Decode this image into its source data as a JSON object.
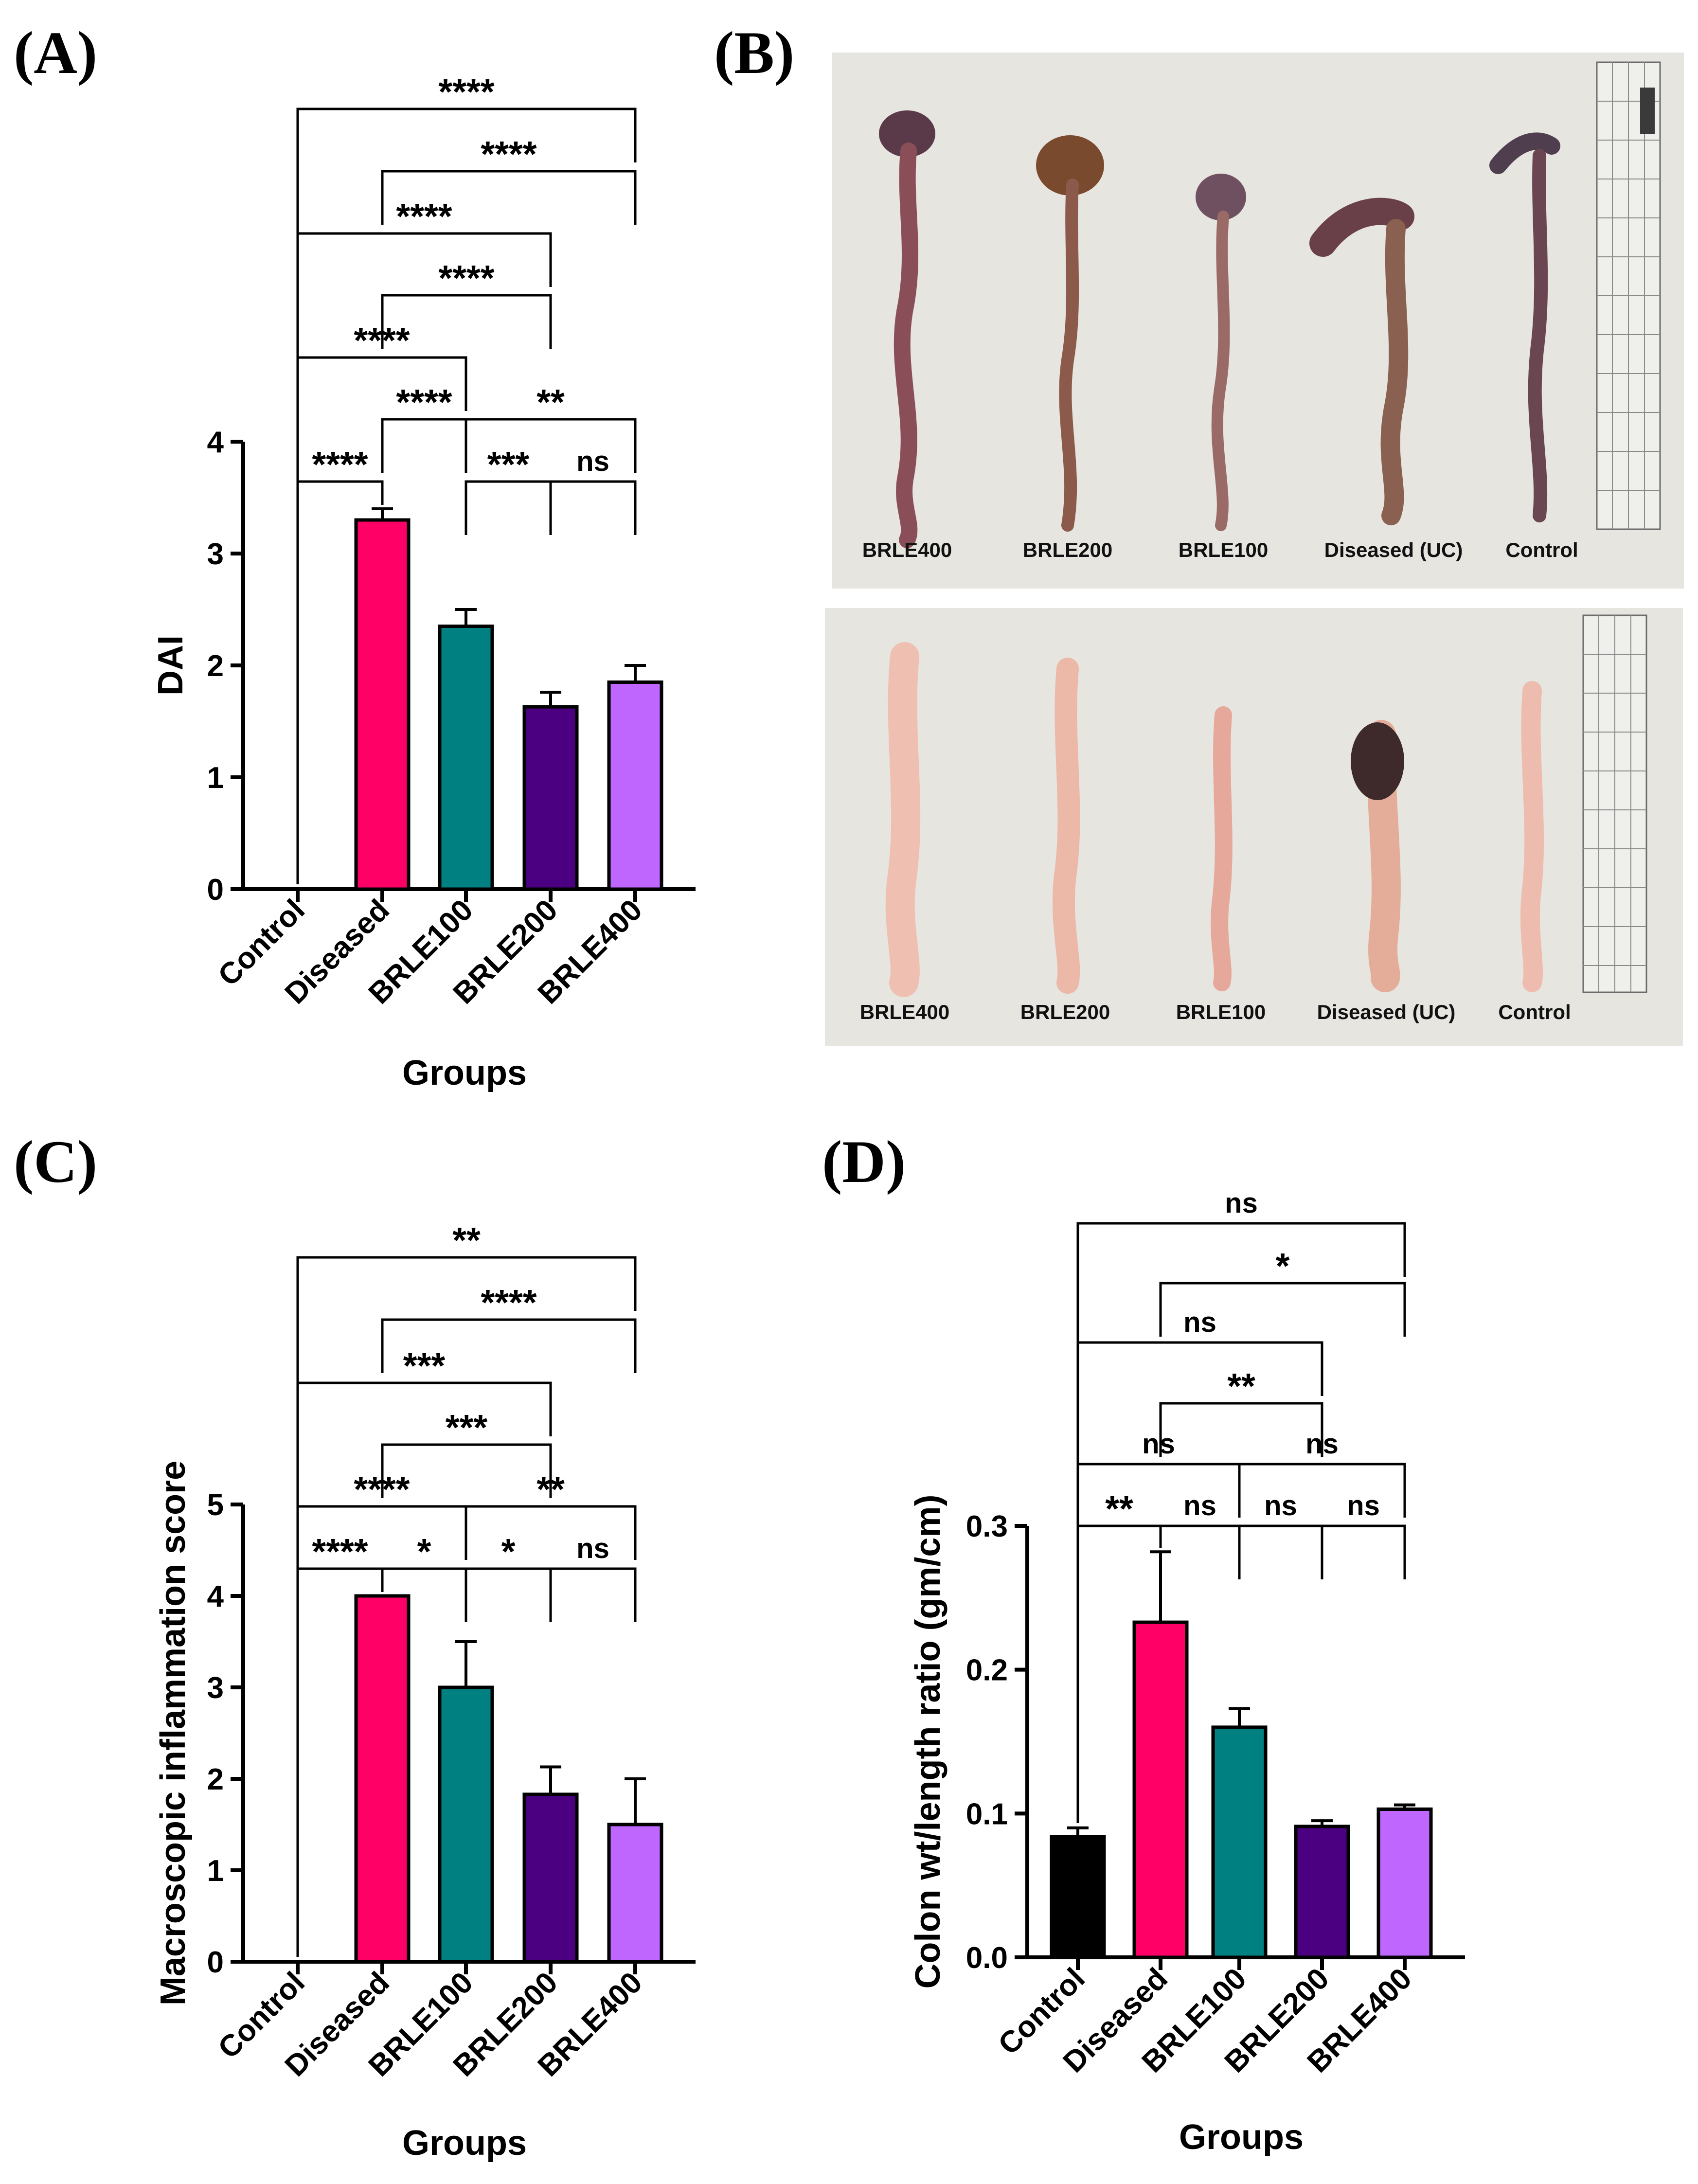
{
  "panels": {
    "A": "(A)",
    "B": "(B)",
    "C": "(C)",
    "D": "(D)"
  },
  "colors": {
    "Control": "#000000",
    "Diseased": "#ff0066",
    "BRLE100": "#008080",
    "BRLE200": "#4b0082",
    "BRLE400": "#bf66ff",
    "photo_background": "#e6e5e0"
  },
  "photos": {
    "top_labels": [
      "BRLE400",
      "BRLE200",
      "BRLE100",
      "Diseased (UC)",
      "Control"
    ],
    "bottom_labels": [
      "BRLE400",
      "BRLE200",
      "BRLE100",
      "Diseased (UC)",
      "Control"
    ]
  },
  "chart_data": [
    {
      "id": "A",
      "type": "bar",
      "title": "",
      "xlabel": "Groups",
      "ylabel": "DAI",
      "categories": [
        "Control",
        "Diseased",
        "BRLE100",
        "BRLE200",
        "BRLE400"
      ],
      "values": [
        0,
        3.3,
        2.35,
        1.63,
        1.85
      ],
      "errors": [
        0,
        0.1,
        0.15,
        0.13,
        0.15
      ],
      "ylim": [
        0,
        4
      ],
      "yticks": [
        0,
        1,
        2,
        3,
        4
      ],
      "comparisons": [
        {
          "from": 0,
          "to": 1,
          "label": "****",
          "level": 0
        },
        {
          "from": 2,
          "to": 3,
          "label": "***",
          "level": 0
        },
        {
          "from": 3,
          "to": 4,
          "label": "ns",
          "level": 0
        },
        {
          "from": 1,
          "to": 2,
          "label": "****",
          "level": 1
        },
        {
          "from": 2,
          "to": 4,
          "label": "**",
          "level": 1
        },
        {
          "from": 0,
          "to": 2,
          "label": "****",
          "level": 2
        },
        {
          "from": 1,
          "to": 3,
          "label": "****",
          "level": 3
        },
        {
          "from": 0,
          "to": 3,
          "label": "****",
          "level": 4
        },
        {
          "from": 1,
          "to": 4,
          "label": "****",
          "level": 5
        },
        {
          "from": 0,
          "to": 4,
          "label": "****",
          "level": 6
        }
      ]
    },
    {
      "id": "C",
      "type": "bar",
      "title": "",
      "xlabel": "Groups",
      "ylabel": "Macroscopic inflammation score",
      "categories": [
        "Control",
        "Diseased",
        "BRLE100",
        "BRLE200",
        "BRLE400"
      ],
      "values": [
        0,
        4.0,
        3.0,
        1.83,
        1.5
      ],
      "errors": [
        0,
        0,
        0.5,
        0.3,
        0.5
      ],
      "ylim": [
        0,
        5
      ],
      "yticks": [
        0,
        1,
        2,
        3,
        4,
        5
      ],
      "comparisons": [
        {
          "from": 0,
          "to": 1,
          "label": "****",
          "level": 0
        },
        {
          "from": 1,
          "to": 2,
          "label": "*",
          "level": 0
        },
        {
          "from": 2,
          "to": 3,
          "label": "*",
          "level": 0
        },
        {
          "from": 3,
          "to": 4,
          "label": "ns",
          "level": 0
        },
        {
          "from": 0,
          "to": 2,
          "label": "****",
          "level": 1
        },
        {
          "from": 2,
          "to": 4,
          "label": "**",
          "level": 1
        },
        {
          "from": 1,
          "to": 3,
          "label": "***",
          "level": 2
        },
        {
          "from": 0,
          "to": 3,
          "label": "***",
          "level": 3
        },
        {
          "from": 1,
          "to": 4,
          "label": "****",
          "level": 4
        },
        {
          "from": 0,
          "to": 4,
          "label": "**",
          "level": 5
        }
      ]
    },
    {
      "id": "D",
      "type": "bar",
      "title": "",
      "xlabel": "Groups",
      "ylabel": "Colon wt/length ratio (gm/cm)",
      "categories": [
        "Control",
        "Diseased",
        "BRLE100",
        "BRLE200",
        "BRLE400"
      ],
      "values": [
        0.084,
        0.233,
        0.16,
        0.091,
        0.103
      ],
      "errors": [
        0.006,
        0.049,
        0.013,
        0.004,
        0.003
      ],
      "ylim": [
        0,
        0.3
      ],
      "yticks": [
        0.0,
        0.1,
        0.2,
        0.3
      ],
      "ytick_labels": [
        "0.0",
        "0.1",
        "0.2",
        "0.3"
      ],
      "comparisons": [
        {
          "from": 0,
          "to": 1,
          "label": "**",
          "level": 0
        },
        {
          "from": 1,
          "to": 2,
          "label": "ns",
          "level": 0
        },
        {
          "from": 2,
          "to": 3,
          "label": "ns",
          "level": 0
        },
        {
          "from": 3,
          "to": 4,
          "label": "ns",
          "level": 0
        },
        {
          "from": 0,
          "to": 2,
          "label": "ns",
          "level": 1
        },
        {
          "from": 2,
          "to": 4,
          "label": "ns",
          "level": 1
        },
        {
          "from": 1,
          "to": 3,
          "label": "**",
          "level": 2
        },
        {
          "from": 0,
          "to": 3,
          "label": "ns",
          "level": 3
        },
        {
          "from": 1,
          "to": 4,
          "label": "*",
          "level": 4
        },
        {
          "from": 0,
          "to": 4,
          "label": "ns",
          "level": 5
        }
      ]
    }
  ]
}
